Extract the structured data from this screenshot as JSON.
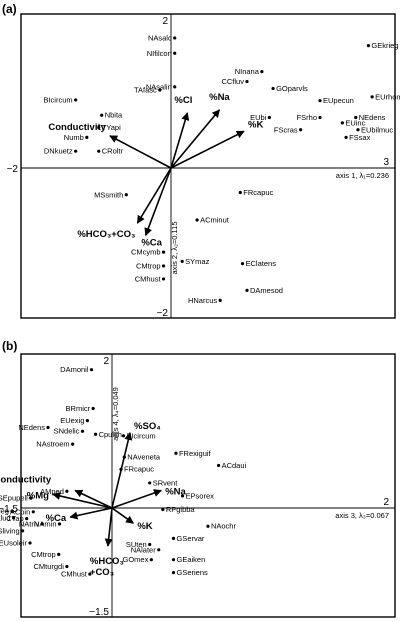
{
  "panel_labels": [
    "(a)",
    "(b)"
  ],
  "chart_data": [
    {
      "type": "scatter",
      "panel": "(a)",
      "title": "",
      "x_axis": {
        "label": "axis 1, λ₁=0.236",
        "range": [
          -2.0,
          3.0
        ],
        "tick_labels": [
          "−2",
          "3"
        ]
      },
      "y_axis": {
        "label": "axis 2, λ₂=0.115",
        "range": [
          -2.0,
          2.0
        ],
        "tick_labels": [
          "2",
          "−2"
        ]
      },
      "points": [
        {
          "label": "NAsalc",
          "x": 0.05,
          "y": 1.7
        },
        {
          "label": "NIfilcon",
          "x": 0.05,
          "y": 1.5
        },
        {
          "label": "NAsalin",
          "x": 0.05,
          "y": 1.06
        },
        {
          "label": "TAfasc",
          "x": -0.15,
          "y": 1.02
        },
        {
          "label": "NInana",
          "x": 1.22,
          "y": 1.26
        },
        {
          "label": "CCfluv",
          "x": 1.02,
          "y": 1.13
        },
        {
          "label": "GOparvls",
          "x": 1.37,
          "y": 1.04
        },
        {
          "label": "GEkrieg",
          "x": 2.65,
          "y": 1.6
        },
        {
          "label": "EUrhomb",
          "x": 2.7,
          "y": 0.93
        },
        {
          "label": "EUpecun",
          "x": 2.0,
          "y": 0.88
        },
        {
          "label": "NEdens",
          "x": 2.48,
          "y": 0.66
        },
        {
          "label": "EUbi",
          "x": 1.32,
          "y": 0.66
        },
        {
          "label": "FSrho",
          "x": 2.0,
          "y": 0.66
        },
        {
          "label": "EUinc",
          "x": 2.3,
          "y": 0.59
        },
        {
          "label": "FScras",
          "x": 1.74,
          "y": 0.5
        },
        {
          "label": "EUbilmuc",
          "x": 2.51,
          "y": 0.5
        },
        {
          "label": "FSsax",
          "x": 2.35,
          "y": 0.4
        },
        {
          "label": "BIcircum",
          "x": -1.28,
          "y": 0.89
        },
        {
          "label": "Nbita",
          "x": -0.93,
          "y": 0.69
        },
        {
          "label": "TYapi",
          "x": -0.97,
          "y": 0.53
        },
        {
          "label": "Numb",
          "x": -1.13,
          "y": 0.4
        },
        {
          "label": "DNkuetz",
          "x": -1.28,
          "y": 0.22
        },
        {
          "label": "CRoltr",
          "x": -0.97,
          "y": 0.22
        },
        {
          "label": "MSsmith",
          "x": -0.6,
          "y": -0.35
        },
        {
          "label": "FRcapuc",
          "x": 0.93,
          "y": -0.32
        },
        {
          "label": "ACminut",
          "x": 0.35,
          "y": -0.68
        },
        {
          "label": "CMcymb",
          "x": -0.1,
          "y": -1.1
        },
        {
          "label": "SYmaz",
          "x": 0.15,
          "y": -1.22
        },
        {
          "label": "EClatens",
          "x": 0.96,
          "y": -1.25
        },
        {
          "label": "CMtrop",
          "x": -0.1,
          "y": -1.28
        },
        {
          "label": "CMhust",
          "x": -0.1,
          "y": -1.45
        },
        {
          "label": "DAmesod",
          "x": 1.02,
          "y": -1.6
        },
        {
          "label": "HNarcus",
          "x": 0.66,
          "y": -1.73
        }
      ],
      "vectors": [
        {
          "label": "%Cl",
          "x": 0.22,
          "y": 0.72
        },
        {
          "label": "%Na",
          "x": 0.65,
          "y": 0.76
        },
        {
          "label": "%K",
          "x": 0.98,
          "y": 0.48
        },
        {
          "label": "Conductivity",
          "x": -0.82,
          "y": 0.42
        },
        {
          "label": "%HCO₃+CO₃",
          "x": -0.45,
          "y": -0.72
        },
        {
          "label": "%Ca",
          "x": -0.34,
          "y": -0.88
        }
      ]
    },
    {
      "type": "scatter",
      "panel": "(b)",
      "title": "",
      "x_axis": {
        "label": "axis 3, λ₃=0.067",
        "range": [
          -1.5,
          2.0
        ],
        "tick_labels": [
          "−1.5",
          "2"
        ]
      },
      "y_axis": {
        "label": "axis 4, λ₄=0.049",
        "range": [
          -1.5,
          2.0
        ],
        "tick_labels": [
          "2",
          "−1.5"
        ]
      },
      "points": [
        {
          "label": "DAmonil",
          "x": -0.25,
          "y": 1.82
        },
        {
          "label": "BRmicr",
          "x": -0.23,
          "y": 1.31
        },
        {
          "label": "EUexig",
          "x": -0.3,
          "y": 1.15
        },
        {
          "label": "NEdens",
          "x": -0.78,
          "y": 1.06
        },
        {
          "label": "SNdelic",
          "x": -0.36,
          "y": 1.01
        },
        {
          "label": "Cpulch",
          "x": -0.2,
          "y": 0.97
        },
        {
          "label": "NAstroem",
          "x": -0.48,
          "y": 0.84
        },
        {
          "label": "BIcircum",
          "x": 0.14,
          "y": 0.95
        },
        {
          "label": "NAveneta",
          "x": 0.15,
          "y": 0.67
        },
        {
          "label": "FRexiguif",
          "x": 0.78,
          "y": 0.72
        },
        {
          "label": "FRcapuc",
          "x": 0.11,
          "y": 0.51
        },
        {
          "label": "ACdaui",
          "x": 1.3,
          "y": 0.56
        },
        {
          "label": "SRvent",
          "x": 0.46,
          "y": 0.33
        },
        {
          "label": "EPsorex",
          "x": 0.86,
          "y": 0.16
        },
        {
          "label": "AMped",
          "x": -0.55,
          "y": 0.22
        },
        {
          "label": "SEpupell",
          "x": -0.99,
          "y": 0.13
        },
        {
          "label": "RPgibba",
          "x": 0.62,
          "y": -0.02
        },
        {
          "label": "GEkrieg",
          "x": -1.22,
          "y": -0.04
        },
        {
          "label": "ACpin",
          "x": -0.96,
          "y": -0.05
        },
        {
          "label": "EUpalud",
          "x": -1.2,
          "y": -0.13
        },
        {
          "label": "CTap",
          "x": -1.04,
          "y": -0.14
        },
        {
          "label": "NAtriv",
          "x": -0.85,
          "y": -0.21
        },
        {
          "label": "NAmin",
          "x": -0.64,
          "y": -0.21
        },
        {
          "label": "NAochr",
          "x": 1.17,
          "y": -0.24
        },
        {
          "label": "SSliving",
          "x": -1.09,
          "y": -0.3
        },
        {
          "label": "EUsoleir",
          "x": -1.0,
          "y": -0.46
        },
        {
          "label": "GServar",
          "x": 0.75,
          "y": -0.4
        },
        {
          "label": "SUten",
          "x": 0.46,
          "y": -0.48
        },
        {
          "label": "NAlater",
          "x": 0.57,
          "y": -0.55
        },
        {
          "label": "CMtrop",
          "x": -0.65,
          "y": -0.61
        },
        {
          "label": "GOmex",
          "x": 0.48,
          "y": -0.68
        },
        {
          "label": "GEaiken",
          "x": 0.75,
          "y": -0.68
        },
        {
          "label": "CMturgdi",
          "x": -0.55,
          "y": -0.77
        },
        {
          "label": "GSeriens",
          "x": 0.75,
          "y": -0.85
        },
        {
          "label": "CMhust",
          "x": -0.27,
          "y": -0.87
        }
      ],
      "vectors": [
        {
          "label": "%SO₄",
          "x": 0.22,
          "y": 0.99
        },
        {
          "label": "%Na",
          "x": 0.6,
          "y": 0.23
        },
        {
          "label": "%Mg",
          "x": -0.72,
          "y": 0.18
        },
        {
          "label": "Conductivity",
          "x": -0.45,
          "y": 0.23
        },
        {
          "label": "%Ca",
          "x": -0.51,
          "y": -0.12
        },
        {
          "label": "%K",
          "x": 0.26,
          "y": -0.2
        },
        {
          "label": "%HCO₃\n+CO₃",
          "x": -0.05,
          "y": -0.5
        }
      ]
    }
  ]
}
